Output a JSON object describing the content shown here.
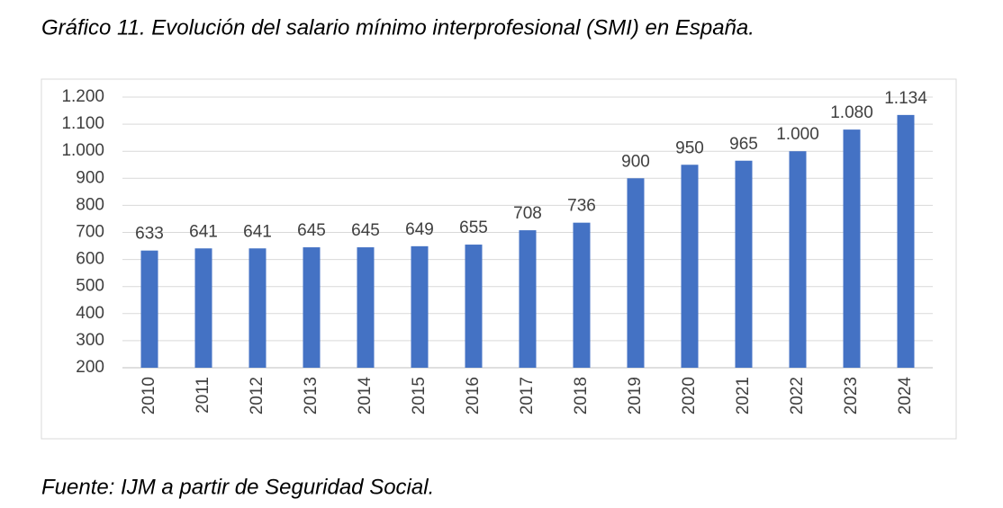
{
  "chart_data": {
    "type": "bar",
    "title": "Gráfico 11. Evolución del salario mínimo interprofesional (SMI) en España.",
    "source": "Fuente: IJM a partir de Seguridad Social.",
    "categories": [
      "2010",
      "2011",
      "2012",
      "2013",
      "2014",
      "2015",
      "2016",
      "2017",
      "2018",
      "2019",
      "2020",
      "2021",
      "2022",
      "2023",
      "2024"
    ],
    "values": [
      633,
      641,
      641,
      645,
      645,
      649,
      655,
      708,
      736,
      900,
      950,
      965,
      1000,
      1080,
      1134
    ],
    "value_labels": [
      "633",
      "641",
      "641",
      "645",
      "645",
      "649",
      "655",
      "708",
      "736",
      "900",
      "950",
      "965",
      "1.000",
      "1.080",
      "1.134"
    ],
    "color": "#4472c4",
    "ylim": [
      200,
      1200
    ],
    "yticks": [
      200,
      300,
      400,
      500,
      600,
      700,
      800,
      900,
      {
        "value": 1000,
        "label": "1.000"
      },
      {
        "value": 1100,
        "label": "1.100"
      },
      {
        "value": 1200,
        "label": "1.200"
      }
    ],
    "grid": true
  }
}
